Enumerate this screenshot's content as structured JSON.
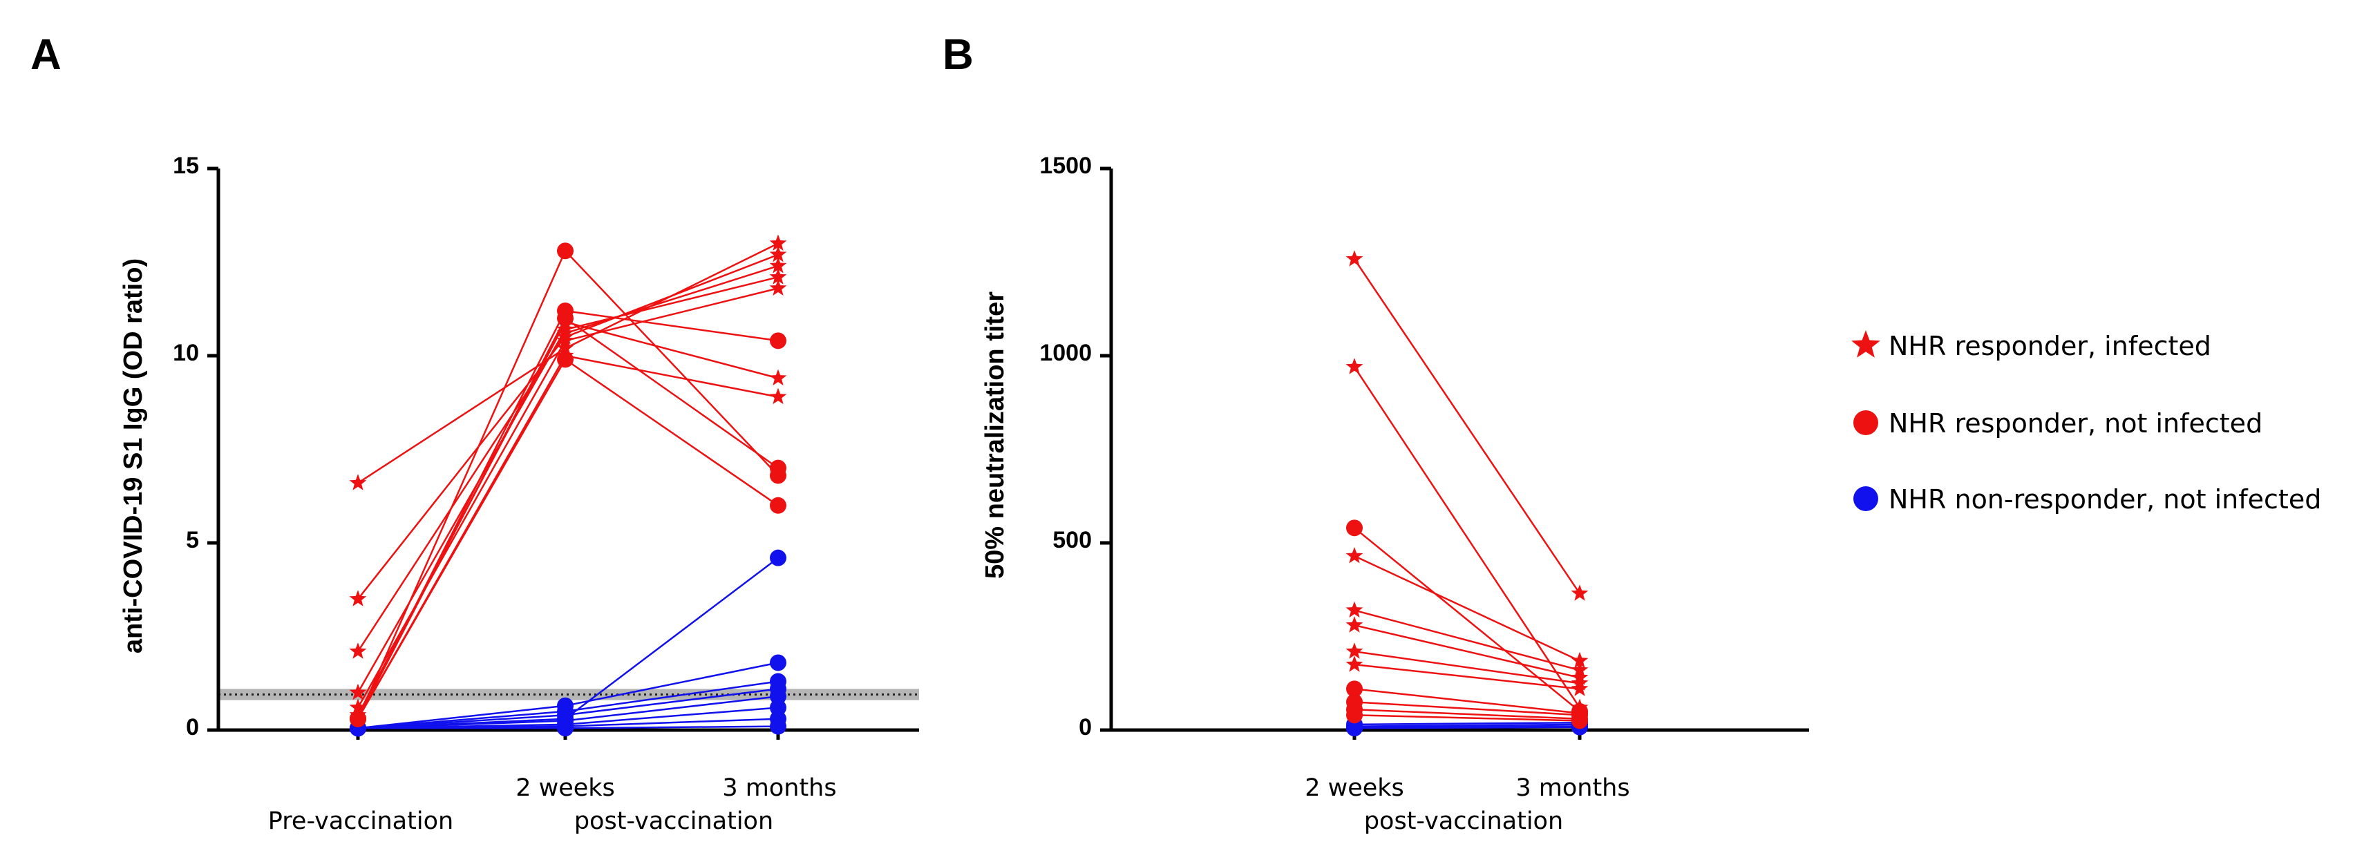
{
  "chart_data": [
    {
      "panel": "A",
      "type": "line",
      "ylabel": "anti-COVID-19 S1 IgG (OD ratio)",
      "ylim": [
        0,
        15
      ],
      "yticks": [
        "0",
        "5",
        "10",
        "15"
      ],
      "x_categories": [
        "Pre-vaccination",
        "2 weeks",
        "3 months"
      ],
      "x_group_label": "post-vaccination",
      "cutoff_band": {
        "low": 0.8,
        "high": 1.1,
        "line": 0.95
      },
      "series": [
        {
          "group": "infected",
          "values": [
            6.6,
            10.2,
            13.0
          ]
        },
        {
          "group": "infected",
          "values": [
            3.5,
            10.5,
            12.7
          ]
        },
        {
          "group": "infected",
          "values": [
            2.1,
            10.6,
            12.4
          ]
        },
        {
          "group": "infected",
          "values": [
            1.0,
            10.7,
            12.1
          ]
        },
        {
          "group": "infected",
          "values": [
            0.6,
            10.4,
            11.8
          ]
        },
        {
          "group": "infected",
          "values": [
            0.4,
            10.9,
            9.4
          ]
        },
        {
          "group": "infected",
          "values": [
            0.3,
            10.0,
            8.9
          ]
        },
        {
          "group": "responder",
          "values": [
            0.3,
            12.8,
            6.8
          ]
        },
        {
          "group": "responder",
          "values": [
            0.3,
            11.2,
            10.4
          ]
        },
        {
          "group": "responder",
          "values": [
            0.3,
            11.0,
            7.0
          ]
        },
        {
          "group": "responder",
          "values": [
            0.3,
            9.9,
            6.0
          ]
        },
        {
          "group": "non_responder",
          "values": [
            0.05,
            0.3,
            4.6
          ]
        },
        {
          "group": "non_responder",
          "values": [
            0.05,
            0.65,
            1.8
          ]
        },
        {
          "group": "non_responder",
          "values": [
            0.05,
            0.5,
            1.3
          ]
        },
        {
          "group": "non_responder",
          "values": [
            0.05,
            0.4,
            1.1
          ]
        },
        {
          "group": "non_responder",
          "values": [
            0.05,
            0.25,
            0.9
          ]
        },
        {
          "group": "non_responder",
          "values": [
            0.05,
            0.15,
            0.6
          ]
        },
        {
          "group": "non_responder",
          "values": [
            0.05,
            0.1,
            0.3
          ]
        },
        {
          "group": "non_responder",
          "values": [
            0.05,
            0.05,
            0.1
          ]
        }
      ]
    },
    {
      "panel": "B",
      "type": "line",
      "ylabel": "50% neutralization titer",
      "ylim": [
        0,
        1500
      ],
      "yticks": [
        "0",
        "500",
        "1000",
        "1500"
      ],
      "x_categories": [
        "2 weeks",
        "3 months"
      ],
      "x_group_label": "post-vaccination",
      "series": [
        {
          "group": "infected",
          "values": [
            1258,
            365
          ]
        },
        {
          "group": "infected",
          "values": [
            970,
            60
          ]
        },
        {
          "group": "infected",
          "values": [
            465,
            185
          ]
        },
        {
          "group": "infected",
          "values": [
            320,
            160
          ]
        },
        {
          "group": "infected",
          "values": [
            280,
            140
          ]
        },
        {
          "group": "infected",
          "values": [
            210,
            125
          ]
        },
        {
          "group": "infected",
          "values": [
            175,
            110
          ]
        },
        {
          "group": "responder",
          "values": [
            540,
            50
          ]
        },
        {
          "group": "responder",
          "values": [
            110,
            45
          ]
        },
        {
          "group": "responder",
          "values": [
            75,
            40
          ]
        },
        {
          "group": "responder",
          "values": [
            55,
            30
          ]
        },
        {
          "group": "responder",
          "values": [
            40,
            25
          ]
        },
        {
          "group": "non_responder",
          "values": [
            15,
            20
          ]
        },
        {
          "group": "non_responder",
          "values": [
            10,
            15
          ]
        },
        {
          "group": "non_responder",
          "values": [
            8,
            10
          ]
        },
        {
          "group": "non_responder",
          "values": [
            5,
            8
          ]
        }
      ]
    }
  ],
  "legend": [
    {
      "key": "infected",
      "marker": "star",
      "color": "#ee1111",
      "label": "NHR responder, infected"
    },
    {
      "key": "responder",
      "marker": "circle",
      "color": "#ee1111",
      "label": "NHR responder, not infected"
    },
    {
      "key": "non_responder",
      "marker": "circle",
      "color": "#1111ee",
      "label": "NHR non-responder, not infected"
    }
  ],
  "colors": {
    "red": "#ee1111",
    "blue": "#1111ee",
    "band": "#b5b5b5"
  }
}
